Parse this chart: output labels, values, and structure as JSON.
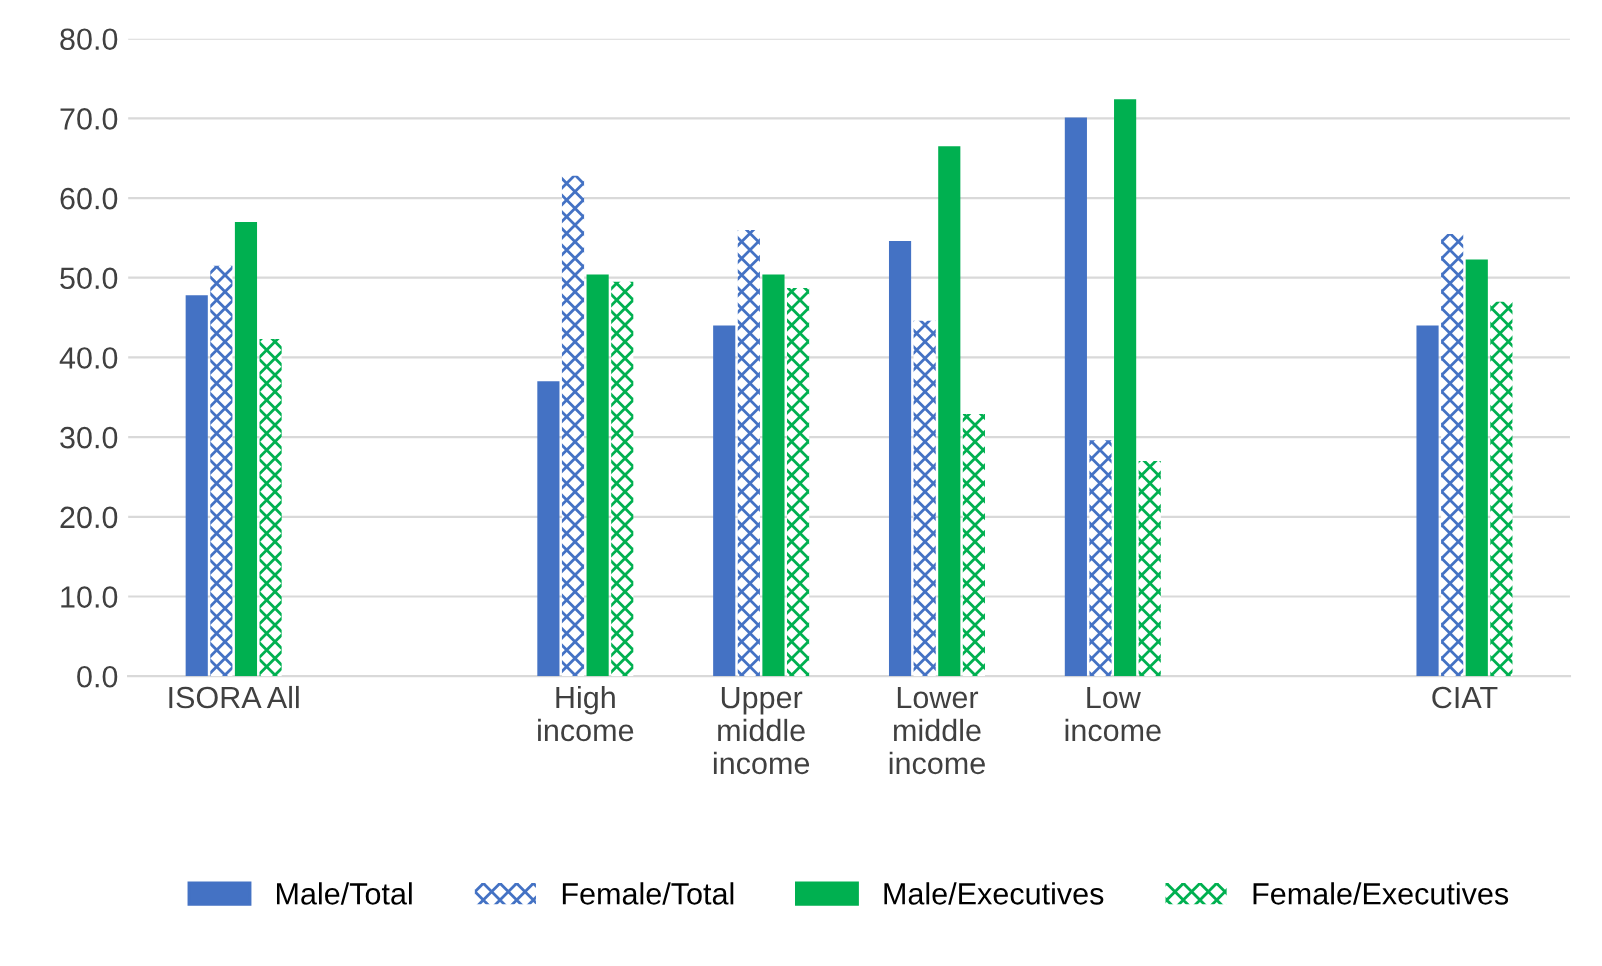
{
  "chart_data": {
    "type": "bar",
    "categories": [
      "ISORA All",
      null,
      "High income",
      "Upper middle income",
      "Lower middle income",
      "Low income",
      null,
      "CIAT"
    ],
    "series": [
      {
        "name": "Male/Total",
        "color": "#4472c4",
        "values": [
          47.8,
          null,
          37.0,
          44.0,
          54.6,
          70.1,
          null,
          44.0
        ]
      },
      {
        "name": "Female/Total",
        "color": "#4472c4",
        "values": [
          51.5,
          null,
          62.8,
          56.0,
          44.6,
          29.6,
          null,
          55.5
        ]
      },
      {
        "name": "Male/Executives",
        "color": "#00b050",
        "values": [
          57.0,
          null,
          50.4,
          50.4,
          66.5,
          72.4,
          null,
          52.3
        ]
      },
      {
        "name": "Female/Executives",
        "color": "#00b050",
        "values": [
          42.3,
          null,
          49.5,
          48.7,
          32.9,
          27.0,
          null,
          47.0
        ]
      }
    ],
    "ylim": [
      0,
      80
    ],
    "yticks": [
      {
        "value": 0,
        "label": "0.0"
      },
      {
        "value": 10,
        "label": "10.0"
      },
      {
        "value": 20,
        "label": "20.0"
      },
      {
        "value": 30,
        "label": "30.0"
      },
      {
        "value": 40,
        "label": "40.0"
      },
      {
        "value": 50,
        "label": "50.0"
      },
      {
        "value": 60,
        "label": "60.0"
      },
      {
        "value": 70,
        "label": "70.0"
      },
      {
        "value": 80,
        "label": "80.0"
      }
    ],
    "grid": "y",
    "legend": "bottom"
  }
}
